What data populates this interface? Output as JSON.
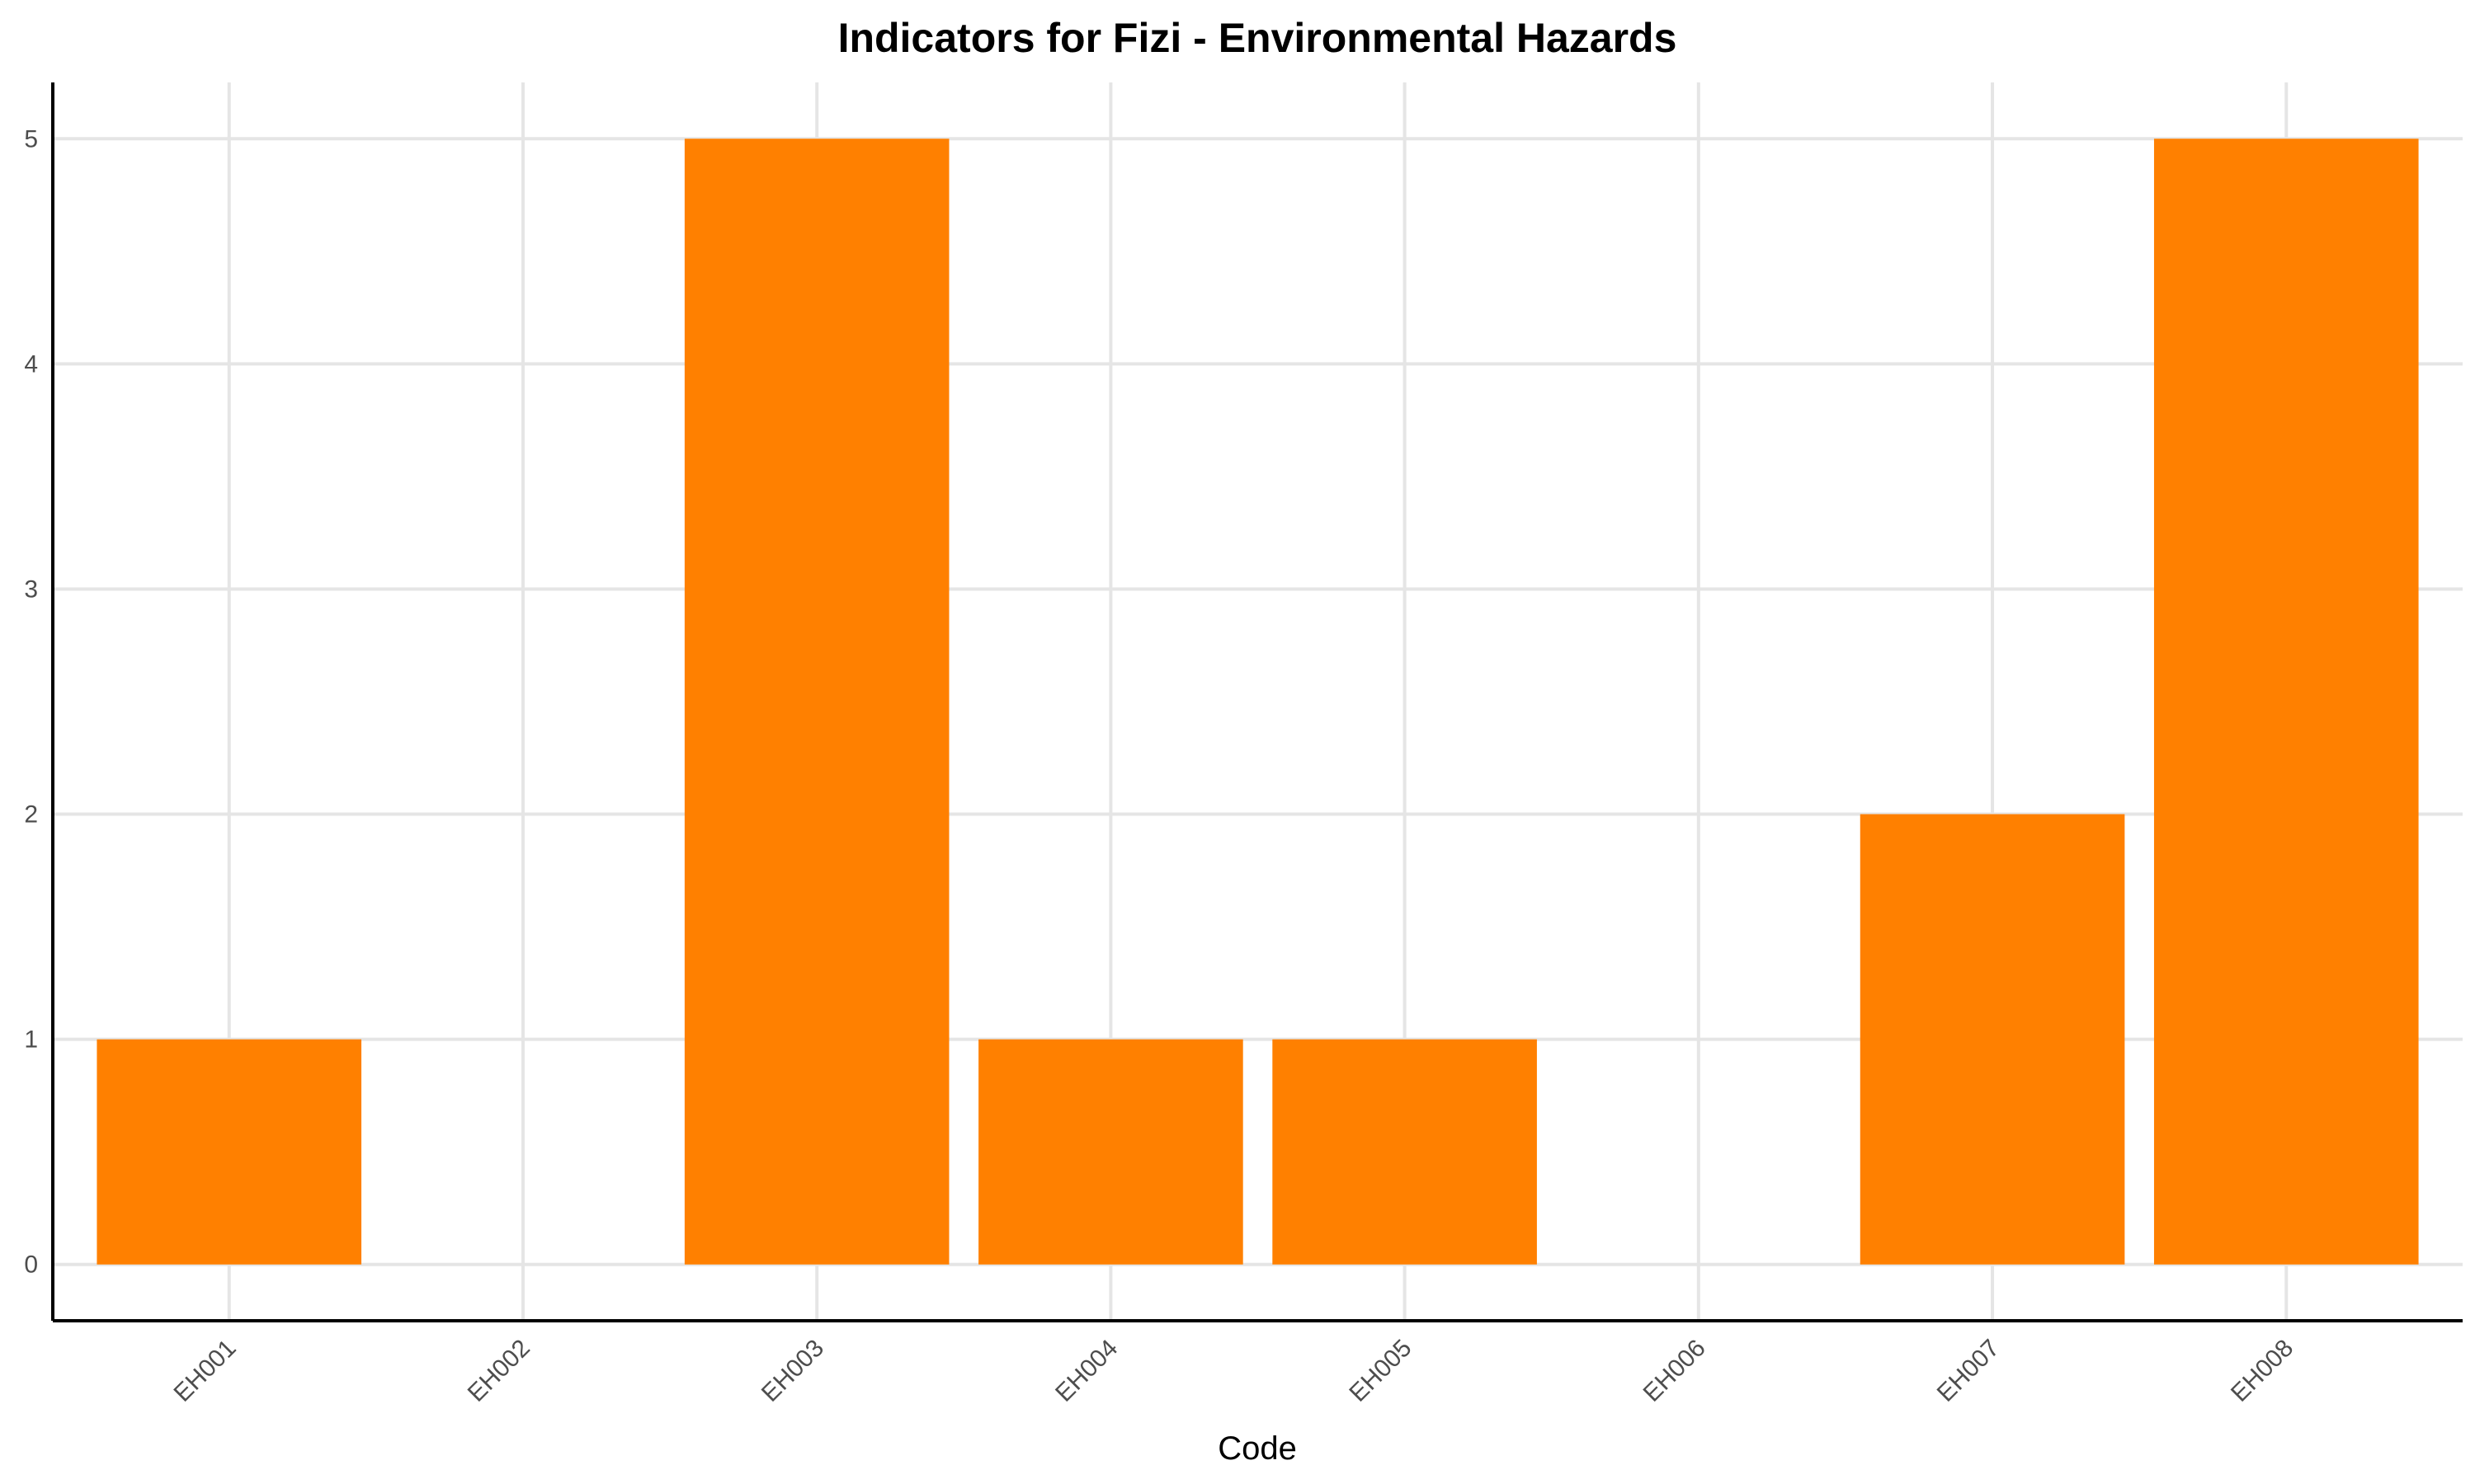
{
  "chart_data": {
    "type": "bar",
    "title": "Indicators for Fizi - Environmental Hazards",
    "xlabel": "Code",
    "ylabel": "",
    "categories": [
      "EH001",
      "EH002",
      "EH003",
      "EH004",
      "EH005",
      "EH006",
      "EH007",
      "EH008"
    ],
    "values": [
      1,
      0,
      5,
      1,
      1,
      0,
      2,
      5
    ],
    "ylim": [
      -0.25,
      5.25
    ],
    "yticks": [
      0,
      1,
      2,
      3,
      4,
      5
    ],
    "grid": true,
    "legend": "none",
    "colors": {
      "bar": "#FF8000",
      "grid": "#E5E5E5",
      "axis": "#000000",
      "tick_text": "#4D4D4D"
    }
  }
}
